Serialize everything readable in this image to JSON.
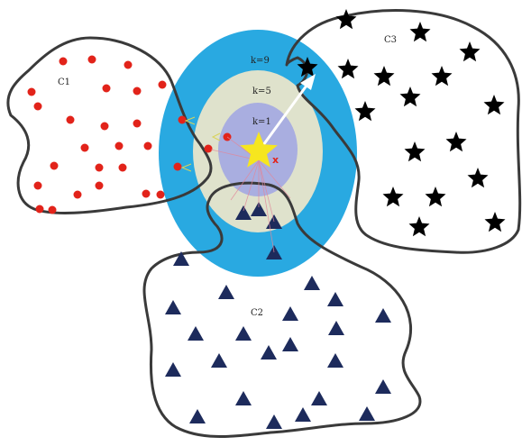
{
  "labels": {
    "k9": "k=9",
    "k5": "k=5",
    "k1": "k=1",
    "c1": "C1",
    "c2": "C2",
    "c3": "C3",
    "query": "x"
  },
  "colors": {
    "ring_k9": "#29a9e1",
    "ring_k5": "#dfe2cc",
    "ring_k1": "#a9aee0",
    "class_c1_dot": "#e2231a",
    "class_c2_triangle": "#1d2b5c",
    "class_c3_star": "#000000",
    "query_star": "#f6e61f",
    "boundary": "#3a3a3a",
    "arrow": "#ffffff"
  },
  "shapes": {
    "c1": "circle",
    "c2": "triangle",
    "c3": "star",
    "query": "star"
  }
}
